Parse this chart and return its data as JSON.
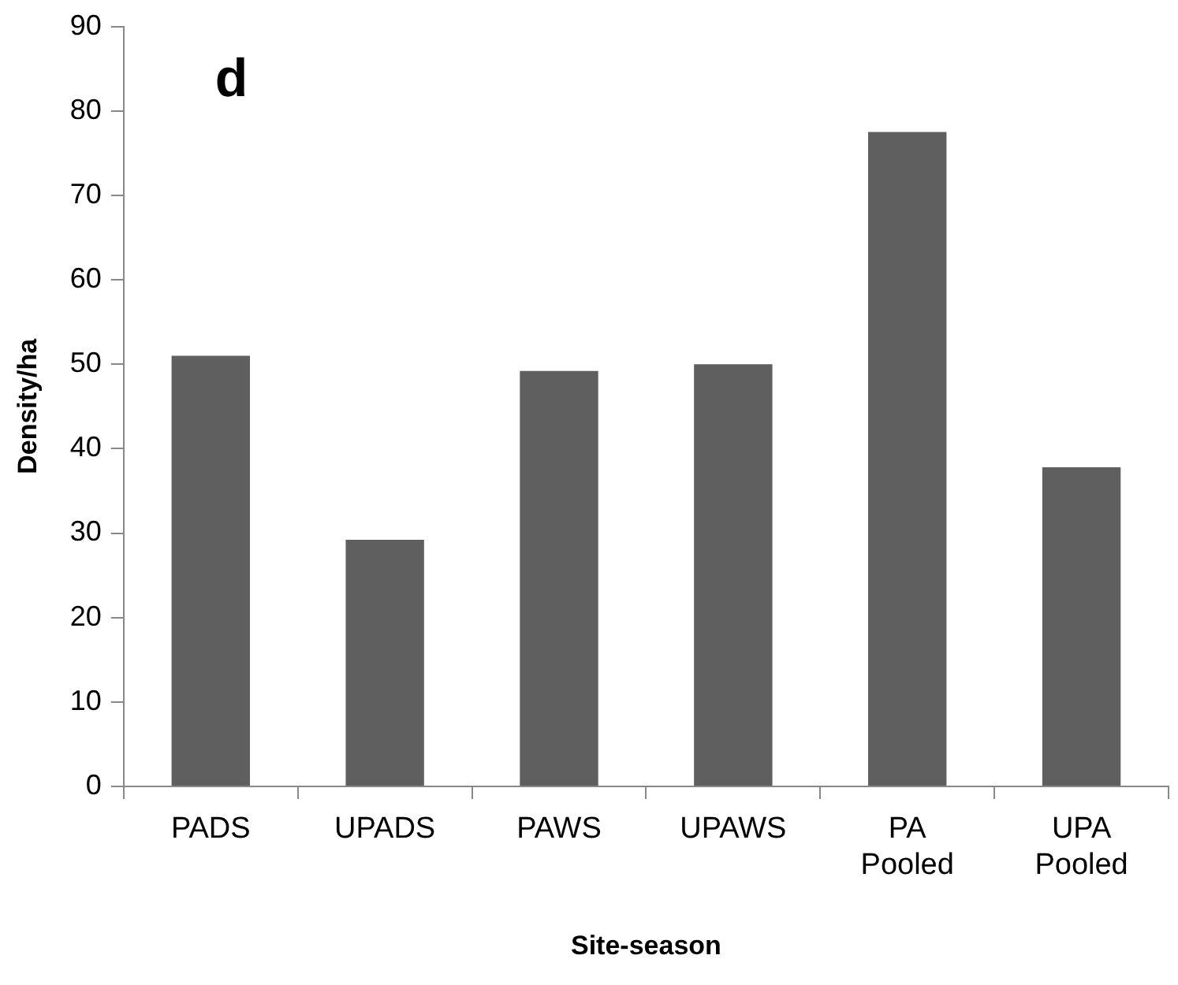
{
  "chart_data": {
    "type": "bar",
    "xlabel": "Site-season",
    "ylabel": "Density/ha",
    "annotations": [
      "d"
    ],
    "categories": [
      "PADS",
      "UPADS",
      "PAWS",
      "UPAWS",
      "PA Pooled",
      "UPA Pooled"
    ],
    "values": [
      51,
      29.2,
      49.2,
      50,
      77.5,
      37.8
    ],
    "color": "#5f5f5f",
    "ylim": [
      0,
      90
    ],
    "yticks": [
      0,
      10,
      20,
      30,
      40,
      50,
      60,
      70,
      80,
      90
    ],
    "grid": false,
    "legend": false
  }
}
